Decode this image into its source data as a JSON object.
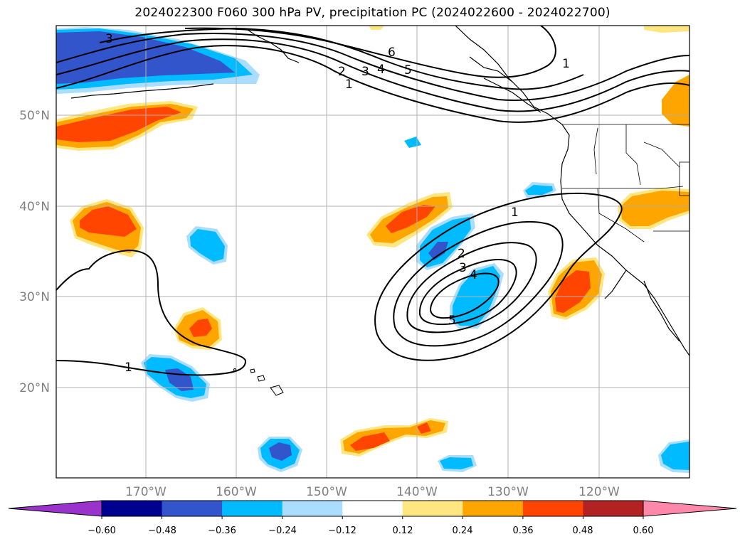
{
  "title": "2024022300 F060 300 hPa PV, precipitation PC (2024022600 - 2024022700)",
  "map": {
    "lon_labels": [
      "170°W",
      "160°W",
      "150°W",
      "140°W",
      "130°W",
      "120°W"
    ],
    "lat_labels": [
      "50°N",
      "40°N",
      "30°N",
      "20°N"
    ],
    "label_color": "#808080",
    "contour_labels": [
      "1",
      "2",
      "3",
      "4",
      "5",
      "6",
      "1",
      "2",
      "3",
      "4",
      "5",
      "1",
      "3",
      "1"
    ]
  },
  "colorbar": {
    "ticks": [
      "−0.60",
      "−0.48",
      "−0.36",
      "−0.24",
      "−0.12",
      "0.12",
      "0.24",
      "0.36",
      "0.48",
      "0.60"
    ],
    "colors": [
      "#9933cc",
      "#000090",
      "#3355cc",
      "#00bbff",
      "#aaddff",
      "#ffffff",
      "#ffe680",
      "#ffa500",
      "#ff4500",
      "#b22222",
      "#ff88aa",
      "#ff88aa"
    ]
  }
}
